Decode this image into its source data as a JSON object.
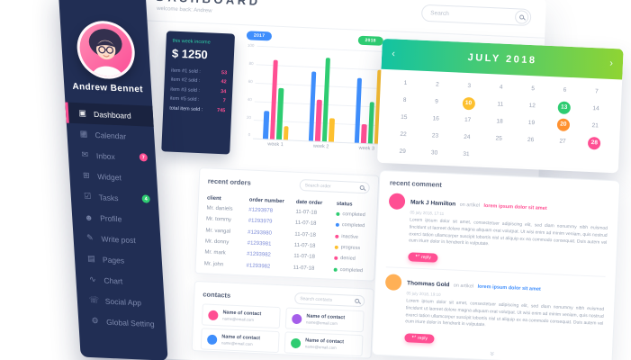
{
  "sidebar": {
    "close_label": "×",
    "user": {
      "name": "Andrew Bennet"
    },
    "items": [
      {
        "label": "Dashboard",
        "icon": "dashboard-icon",
        "active": true
      },
      {
        "label": "Calendar",
        "icon": "calendar-icon"
      },
      {
        "label": "Inbox",
        "icon": "inbox-icon",
        "badge": "7",
        "badge_color": "#ff4f93"
      },
      {
        "label": "Widget",
        "icon": "widget-icon"
      },
      {
        "label": "Tasks",
        "icon": "tasks-icon",
        "badge": "4",
        "badge_color": "#2ecc71"
      },
      {
        "label": "Profile",
        "icon": "profile-icon"
      },
      {
        "label": "Write post",
        "icon": "write-icon"
      },
      {
        "label": "Pages",
        "icon": "pages-icon"
      },
      {
        "label": "Chart",
        "icon": "chart-icon"
      },
      {
        "label": "Social App",
        "icon": "social-icon"
      },
      {
        "label": "Global Setting",
        "icon": "settings-icon"
      }
    ]
  },
  "header": {
    "title": "DASHBOARD",
    "subtitle": "welcome back: Andrew",
    "search_placeholder": "Search"
  },
  "stats": {
    "label": "this week income",
    "value": "$ 1250",
    "rows": [
      {
        "label": "item #1 sold :",
        "value": "53"
      },
      {
        "label": "item #2 sold :",
        "value": "42"
      },
      {
        "label": "item #3 sold :",
        "value": "34"
      },
      {
        "label": "item #5 sold :",
        "value": "7"
      },
      {
        "label": "total item sold :",
        "value": "745",
        "total": true
      }
    ]
  },
  "chart_data": {
    "type": "bar",
    "categories": [
      "week 1",
      "week 2",
      "week 3"
    ],
    "legend": [
      {
        "label": "2017",
        "color": "#3f8efc"
      },
      {
        "label": "2018",
        "color": "#2ecc71"
      }
    ],
    "series": [
      {
        "name": "blue",
        "color": "#3f8efc",
        "values": [
          30,
          75,
          70
        ]
      },
      {
        "name": "pink",
        "color": "#ff4f93",
        "values": [
          85,
          45,
          20
        ]
      },
      {
        "name": "green",
        "color": "#2ecc71",
        "values": [
          55,
          90,
          45
        ]
      },
      {
        "name": "yellow",
        "color": "#fdc02f",
        "values": [
          15,
          25,
          80
        ]
      }
    ],
    "ticks": [
      "100",
      "80",
      "60",
      "40",
      "20",
      "0"
    ],
    "ylim": [
      0,
      100
    ],
    "grid": true
  },
  "calendar": {
    "prev_icon": "‹",
    "next_icon": "›",
    "title": "JULY 2018",
    "weeks": [
      [
        "1",
        "2",
        "3",
        "4",
        "5",
        "6",
        "7"
      ],
      [
        "8",
        "9",
        "10",
        "11",
        "12",
        "13",
        "14"
      ],
      [
        "15",
        "16",
        "17",
        "18",
        "19",
        "20",
        "21"
      ],
      [
        "22",
        "23",
        "24",
        "25",
        "26",
        "27",
        "28"
      ],
      [
        "29",
        "30",
        "31",
        "",
        "",
        "",
        ""
      ]
    ],
    "highlights": {
      "10": "#fdc02f",
      "13": "#2ecc71",
      "20": "#ff9130",
      "28": "#ff4f93"
    }
  },
  "orders": {
    "title": "recent orders",
    "search_placeholder": "Search order",
    "columns": [
      "client",
      "order number",
      "date order",
      "status"
    ],
    "rows": [
      {
        "client": "Mr. daniels",
        "order_number": "#1293978",
        "date_order": "11-07-18",
        "status": "completed",
        "status_color": "#2ecc71"
      },
      {
        "client": "Mr. tommy",
        "order_number": "#1293979",
        "date_order": "11-07-18",
        "status": "completed",
        "status_color": "#3f8efc"
      },
      {
        "client": "Mr. vangal",
        "order_number": "#1293980",
        "date_order": "11-07-18",
        "status": "inactive",
        "status_color": "#ff4f93"
      },
      {
        "client": "Mr. donny",
        "order_number": "#1293981",
        "date_order": "11-07-18",
        "status": "progress",
        "status_color": "#fdc02f"
      },
      {
        "client": "Mr. mark",
        "order_number": "#1293982",
        "date_order": "11-07-18",
        "status": "denied",
        "status_color": "#ff4f93"
      },
      {
        "client": "Mr. john",
        "order_number": "#1293982",
        "date_order": "11-07-18",
        "status": "completed",
        "status_color": "#2ecc71"
      }
    ]
  },
  "contacts": {
    "title": "contacts",
    "search_placeholder": "Search contacts",
    "cards": [
      {
        "name": "Name of contact",
        "email": "name@email.com",
        "color": "#ff4f93"
      },
      {
        "name": "Name of contact",
        "email": "name@email.com",
        "color": "#a55eea"
      },
      {
        "name": "Name of contact",
        "email": "name@email.com",
        "color": "#3f8efc"
      },
      {
        "name": "Name of contact",
        "email": "name@email.com",
        "color": "#2ecc71"
      }
    ]
  },
  "comments": {
    "title": "recent comment",
    "more_icon": "»",
    "items": [
      {
        "name": "Mark J Hamilton",
        "prefix": "on artikel",
        "link": "lorem ipsum dolor sit amet",
        "link_color": "#ff4f93",
        "time": "05 july 2018, 17:11",
        "body": "Lorem ipsum dolor sit amet, consectetuer adipiscing elit, sed diam nonummy nibh euismod tincidunt ut laoreet dolore magna aliquam erat volutpat. Ut wisi enim ad minim veniam, quis nostrud exerci tation ullamcorper suscipit lobortis nisl ut aliquip ex ea commodo consequat. Duis autem vel eum iriure dolor in hendrerit in vulputate.",
        "reply_label": "reply",
        "avatar_color": "#ff4f93"
      },
      {
        "name": "Thommas Gold",
        "prefix": "on artikel",
        "link": "lorem ipsum dolor sit amet",
        "link_color": "#3f8efc",
        "time": "05 july 2018, 19:10",
        "body": "Lorem ipsum dolor sit amet, consectetuer adipiscing elit, sed diam nonummy nibh euismod tincidunt ut laoreet dolore magna aliquam erat volutpat. Ut wisi enim ad minim veniam, quis nostrud exerci tation ullamcorper suscipit lobortis nisl ut aliquip ex ea commodo consequat. Duis autem vel eum iriure dolor in hendrerit in vulputate.",
        "reply_label": "reply",
        "avatar_color": "#ffb056"
      }
    ]
  }
}
